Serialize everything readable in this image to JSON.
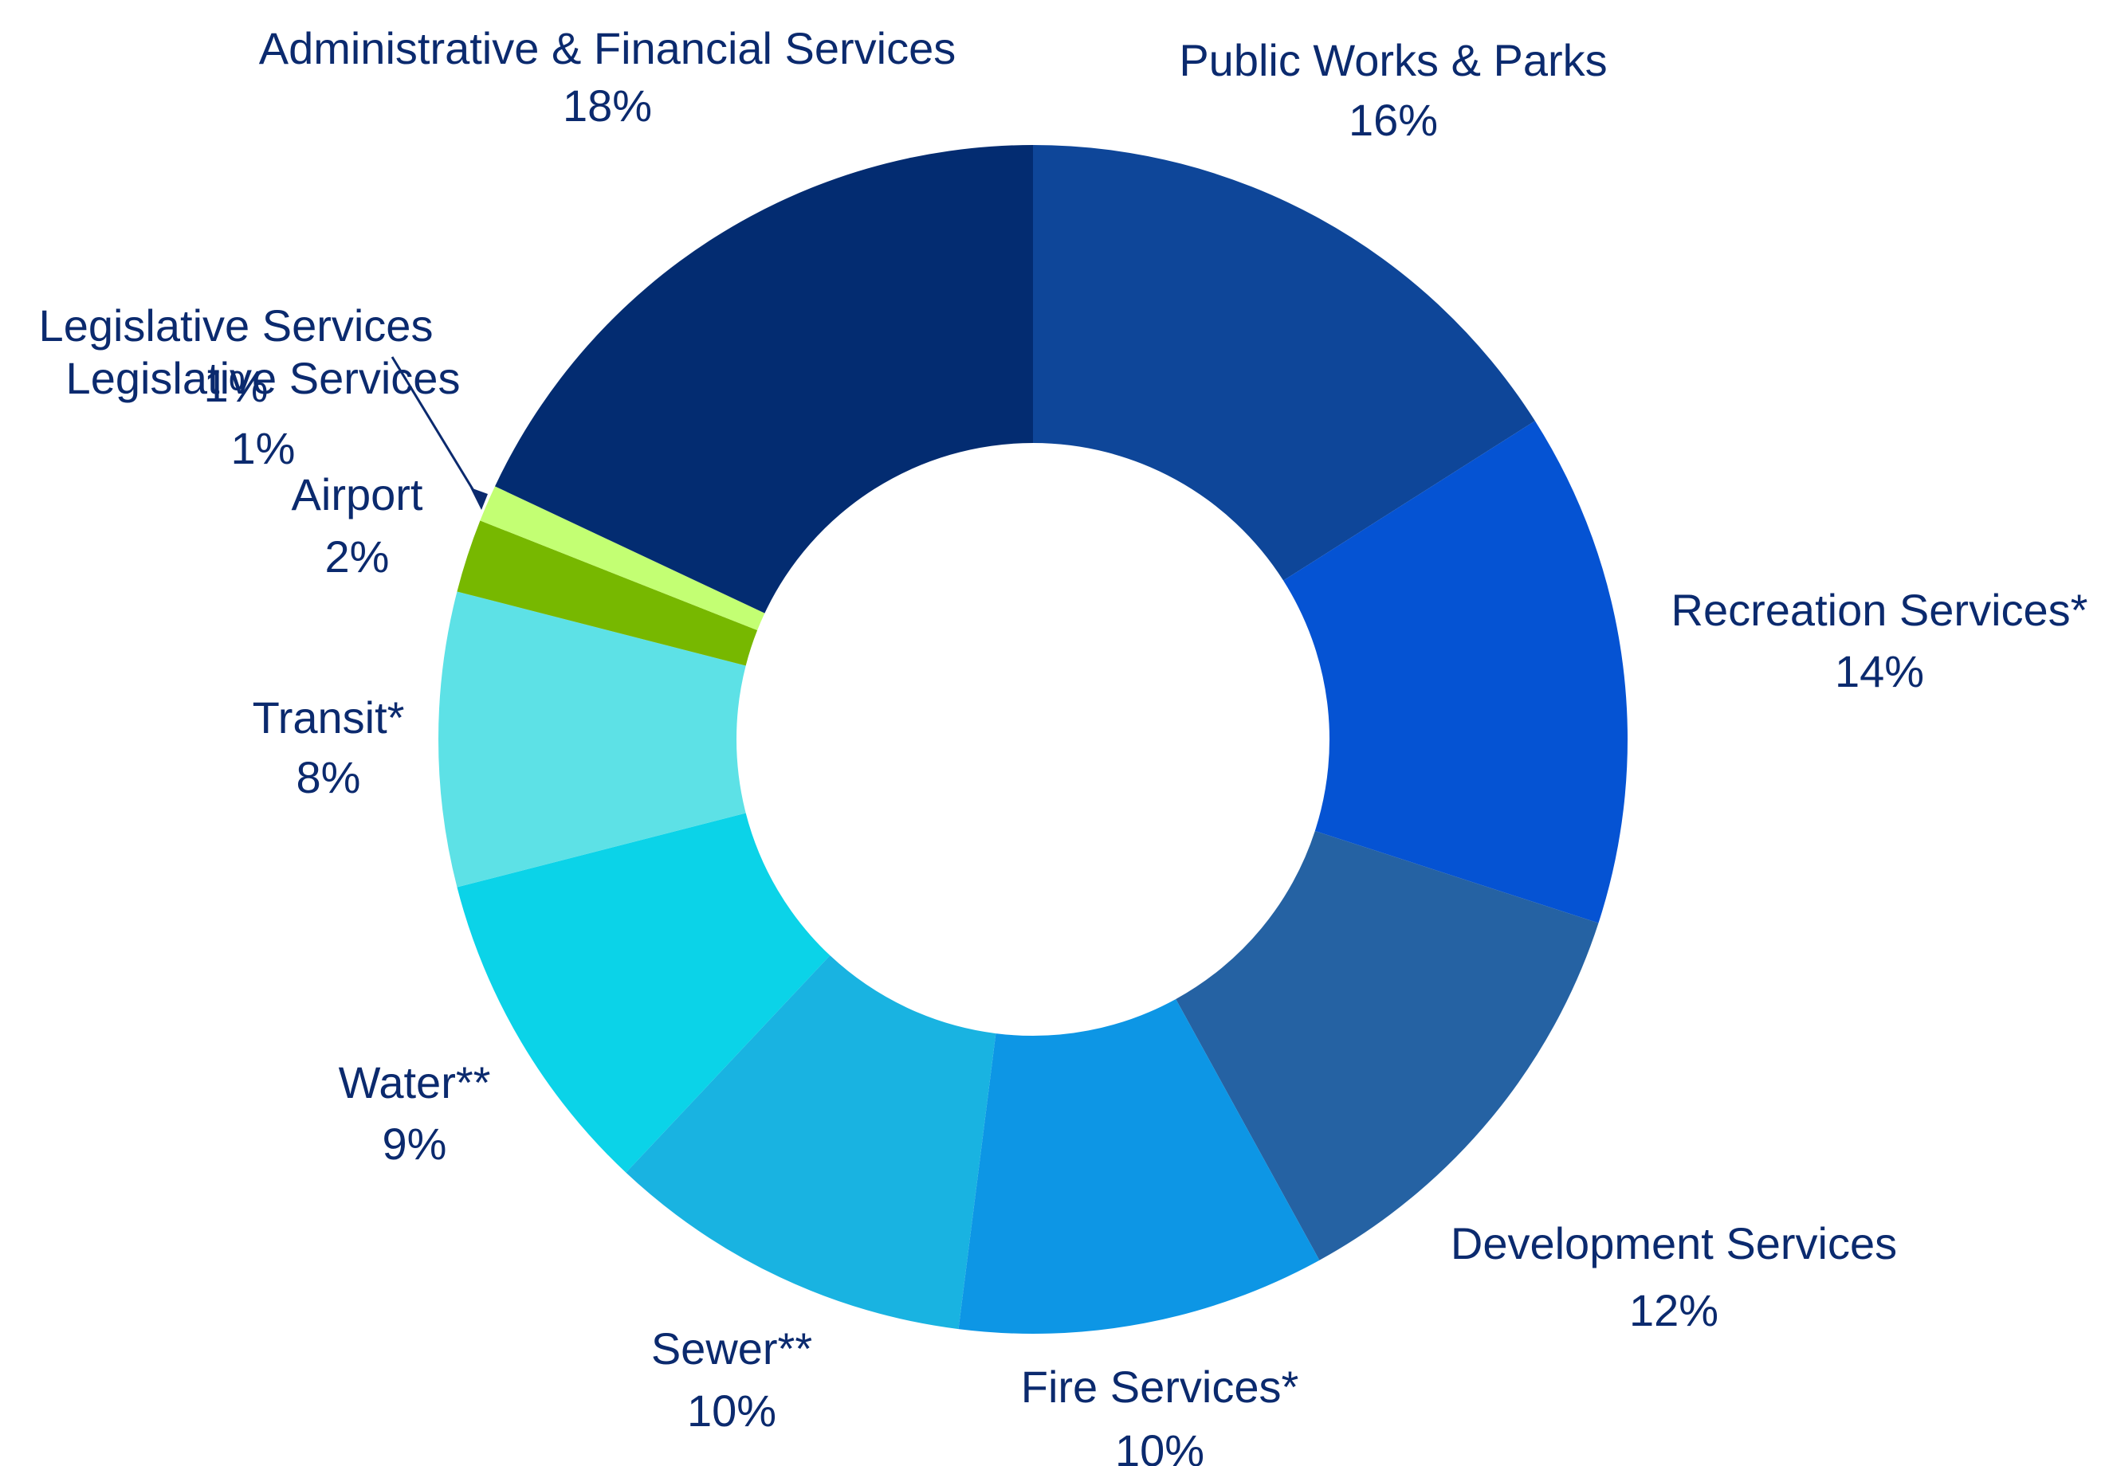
{
  "chart_data": {
    "type": "pie",
    "donut": true,
    "title": "",
    "slices": [
      {
        "name": "Public Works & Parks",
        "value": 16,
        "percent_label": "16%",
        "color": "#0e4699"
      },
      {
        "name": "Recreation Services*",
        "value": 14,
        "percent_label": "14%",
        "color": "#0553d3"
      },
      {
        "name": "Development Services",
        "value": 12,
        "percent_label": "12%",
        "color": "#2562a3"
      },
      {
        "name": "Fire Services*",
        "value": 10,
        "percent_label": "10%",
        "color": "#0d96e5"
      },
      {
        "name": "Sewer**",
        "value": 10,
        "percent_label": "10%",
        "color": "#19b3e1"
      },
      {
        "name": "Water**",
        "value": 9,
        "percent_label": "9%",
        "color": "#0bd3e8"
      },
      {
        "name": "Transit*",
        "value": 8,
        "percent_label": "8%",
        "color": "#5de1e6"
      },
      {
        "name": "Airport",
        "value": 2,
        "percent_label": "2%",
        "color": "#77b800"
      },
      {
        "name": "Legislative Services",
        "value": 1,
        "percent_label": "1%",
        "color": "#c3ff73"
      },
      {
        "name": "Administrative & Financial Services",
        "value": 18,
        "percent_label": "18%",
        "color": "#032c71"
      }
    ],
    "duplicate_label": {
      "name": "Legislative Services",
      "percent_label": "1%"
    }
  }
}
